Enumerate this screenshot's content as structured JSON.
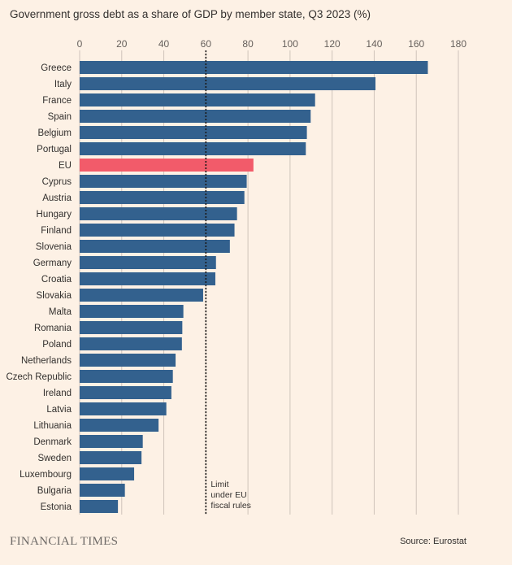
{
  "chart_data": {
    "type": "bar",
    "orientation": "horizontal",
    "title": "Government gross debt as a share of GDP by member state, Q3 2023 (%)",
    "xlim": [
      0,
      180
    ],
    "xticks": [
      0,
      20,
      40,
      60,
      80,
      100,
      120,
      140,
      160,
      180
    ],
    "grid": true,
    "categories": [
      "Greece",
      "Italy",
      "France",
      "Spain",
      "Belgium",
      "Portugal",
      "EU",
      "Cyprus",
      "Austria",
      "Hungary",
      "Finland",
      "Slovenia",
      "Germany",
      "Croatia",
      "Slovakia",
      "Malta",
      "Romania",
      "Poland",
      "Netherlands",
      "Czech Republic",
      "Ireland",
      "Latvia",
      "Lithuania",
      "Denmark",
      "Sweden",
      "Luxembourg",
      "Bulgaria",
      "Estonia"
    ],
    "values": [
      165.5,
      140.6,
      111.9,
      109.8,
      108.0,
      107.5,
      82.6,
      79.4,
      78.3,
      74.8,
      73.6,
      71.4,
      64.8,
      64.5,
      58.7,
      49.3,
      48.8,
      48.6,
      45.6,
      44.3,
      43.6,
      41.2,
      37.5,
      30.0,
      29.4,
      25.9,
      21.5,
      18.2
    ],
    "highlight": "EU",
    "colors": {
      "bar": "#33618e",
      "highlight": "#f25b6a",
      "background": "#fdf1e5",
      "grid": "#cfc4bb"
    },
    "reference_line": {
      "value": 60,
      "label_lines": [
        "Limit",
        "under EU",
        "fiscal rules"
      ]
    }
  },
  "source": "Source: Eurostat",
  "brand": "FINANCIAL TIMES"
}
